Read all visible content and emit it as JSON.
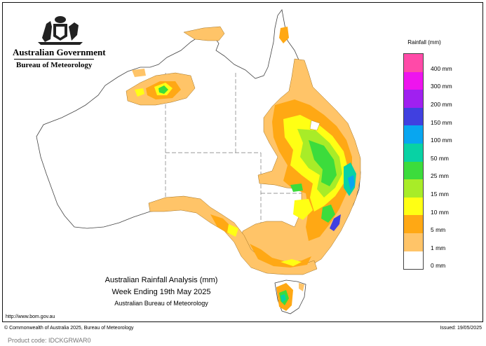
{
  "government": {
    "name": "Australian Government",
    "bureau": "Bureau of Meteorology",
    "logo": "commonwealth-coat-of-arms"
  },
  "map": {
    "title_line1": "Australian Rainfall Analysis (mm)",
    "title_line2": "Week Ending 19th May 2025",
    "title_line3": "Australian Bureau of Meteorology",
    "region": "Australia",
    "background_color": "#ffffff"
  },
  "legend": {
    "title": "Rainfall (mm)",
    "items": [
      {
        "label": "400 mm",
        "color": "#ff4aa8"
      },
      {
        "label": "300 mm",
        "color": "#ee14ee"
      },
      {
        "label": "200 mm",
        "color": "#a020f0"
      },
      {
        "label": "150 mm",
        "color": "#4040e0"
      },
      {
        "label": "100 mm",
        "color": "#08a6f0"
      },
      {
        "label": "50 mm",
        "color": "#08d2a4"
      },
      {
        "label": "25 mm",
        "color": "#3cdc3c"
      },
      {
        "label": "15 mm",
        "color": "#a8ec28"
      },
      {
        "label": "10 mm",
        "color": "#ffff14"
      },
      {
        "label": "5 mm",
        "color": "#ffa814"
      },
      {
        "label": "1 mm",
        "color": "#ffc468"
      },
      {
        "label": "0 mm",
        "color": "#ffffff"
      }
    ]
  },
  "footer": {
    "url": "http://www.bom.gov.au",
    "copyright": "© Commonwealth of Australia 2025, Bureau of Meteorology",
    "issued": "Issued: 19/05/2025",
    "product_code": "Product code: IDCKGRWAR0"
  }
}
